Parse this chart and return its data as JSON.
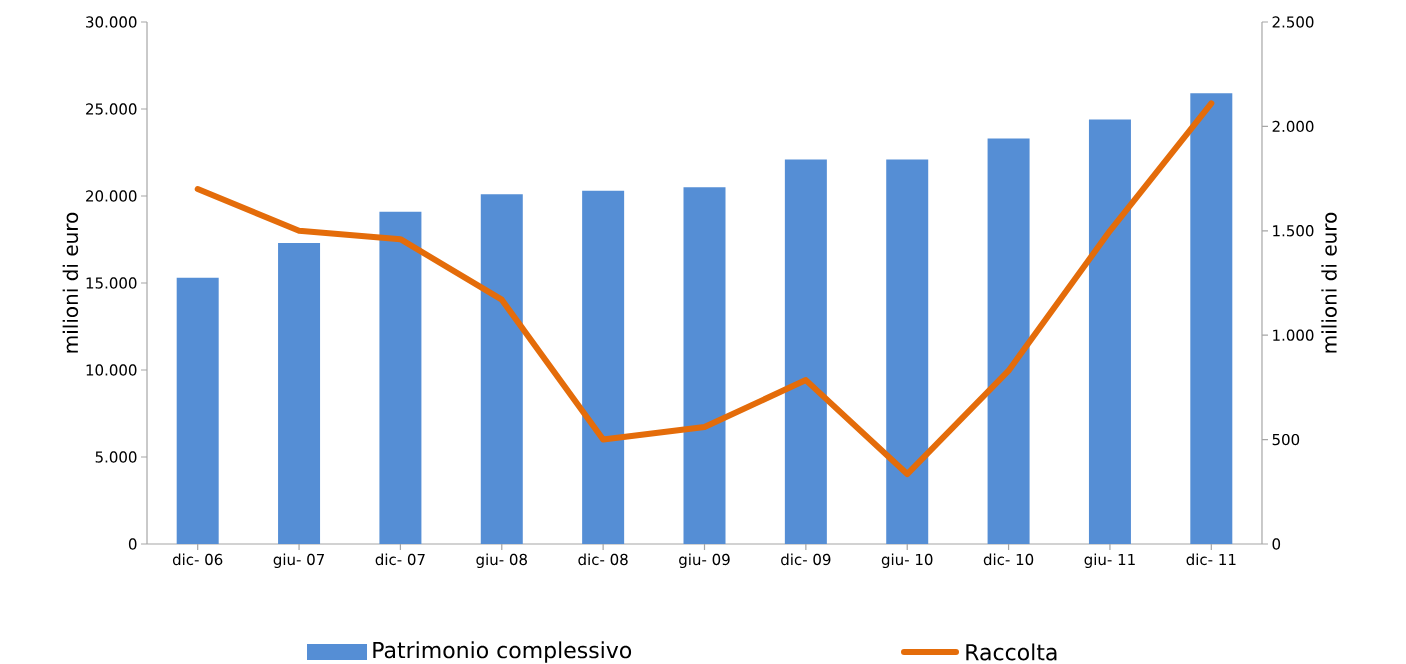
{
  "chart_data": {
    "type": "bar",
    "categories": [
      "dic- 06",
      "giu- 07",
      "dic- 07",
      "giu- 08",
      "dic- 08",
      "giu- 09",
      "dic- 09",
      "giu- 10",
      "dic- 10",
      "giu- 11",
      "dic- 11"
    ],
    "series": [
      {
        "name": "Patrimonio complessivo",
        "color": "#558ed5",
        "values": [
          15300,
          17300,
          19100,
          20100,
          20300,
          20500,
          22100,
          22100,
          23300,
          24400,
          25900
        ]
      },
      {
        "name": "Raccolta",
        "type": "line",
        "axis": "y2",
        "color": "#e46c0a",
        "values": [
          1700,
          1500,
          1460,
          1170,
          500,
          560,
          785,
          335,
          830,
          1500,
          2110
        ]
      }
    ],
    "ylabel": "milioni di euro",
    "y2label": "milioni di euro",
    "ylim": [
      0,
      30000
    ],
    "yticks": [
      {
        "value": 0,
        "label": "0"
      },
      {
        "value": 5000,
        "label": "5.000"
      },
      {
        "value": 10000,
        "label": "10.000"
      },
      {
        "value": 15000,
        "label": "15.000"
      },
      {
        "value": 20000,
        "label": "20.000"
      },
      {
        "value": 25000,
        "label": "25.000"
      },
      {
        "value": 30000,
        "label": "30.000"
      }
    ],
    "y2lim": [
      0,
      2500
    ],
    "y2ticks": [
      {
        "value": 0,
        "label": "0"
      },
      {
        "value": 500,
        "label": "500"
      },
      {
        "value": 1000,
        "label": "1.000"
      },
      {
        "value": 1500,
        "label": "1.500"
      },
      {
        "value": 2000,
        "label": "2.000"
      },
      {
        "value": 2500,
        "label": "2.500"
      }
    ],
    "grid": false,
    "legend": "bottom",
    "marker": "none",
    "line_style": "solid"
  }
}
